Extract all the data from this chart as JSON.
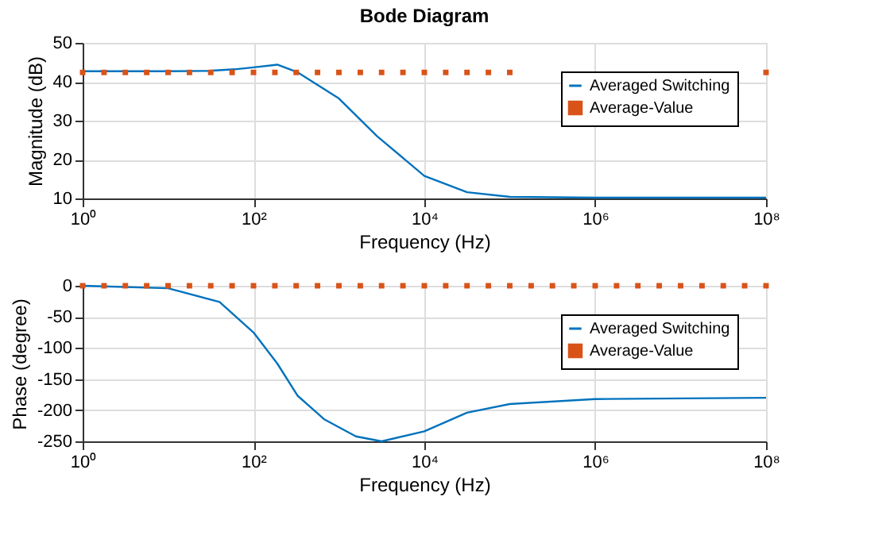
{
  "chart_data": [
    {
      "type": "line",
      "title": "Bode Diagram",
      "xlabel": "Frequency (Hz)",
      "ylabel": "Magnitude (dB)",
      "log": "x",
      "grid": true,
      "legend": "top right",
      "xlim": [
        1,
        100000000
      ],
      "xticks": [
        {
          "value": 1,
          "label": "10⁰"
        },
        {
          "value": 100,
          "label": "10²"
        },
        {
          "value": 10000,
          "label": "10⁴"
        },
        {
          "value": 1000000,
          "label": "10⁶"
        },
        {
          "value": 100000000,
          "label": "10⁸"
        }
      ],
      "ylim": [
        10,
        50
      ],
      "yticks": [
        10,
        20,
        30,
        40,
        50
      ],
      "series": [
        {
          "name": "Averaged Switching",
          "color": "#0072bd",
          "x": [
            1,
            10,
            30,
            60,
            100,
            190,
            330,
            1000,
            2800,
            10000,
            31600,
            100000,
            1000000,
            100000000
          ],
          "values": [
            42.7,
            42.7,
            42.8,
            43.2,
            43.7,
            44.4,
            42.4,
            35.7,
            26,
            15.8,
            11.6,
            10.4,
            10.2,
            10.2
          ]
        },
        {
          "name": "Average-Value",
          "type": "scatter",
          "marker": "square",
          "color": "#d95319",
          "x": [
            1,
            1.78,
            3.16,
            5.62,
            10,
            17.8,
            31.6,
            56.2,
            100,
            178,
            316,
            562,
            1000,
            1780,
            3160,
            5620,
            10000,
            17800,
            31600,
            56200,
            100000,
            178000,
            316000,
            562000,
            1000000,
            1780000,
            3160000,
            5620000,
            10000000,
            17800000,
            31600000,
            56200000,
            100000000
          ],
          "values": [
            42.4,
            42.4,
            42.4,
            42.4,
            42.4,
            42.4,
            42.4,
            42.4,
            42.4,
            42.4,
            42.4,
            42.4,
            42.4,
            42.4,
            42.4,
            42.4,
            42.4,
            42.4,
            42.4,
            42.4,
            42.4,
            null,
            null,
            null,
            null,
            null,
            null,
            null,
            null,
            null,
            null,
            null,
            42.4
          ]
        }
      ]
    },
    {
      "type": "line",
      "xlabel": "Frequency (Hz)",
      "ylabel": "Phase (degree)",
      "log": "x",
      "grid": true,
      "legend": "top right",
      "xlim": [
        1,
        100000000
      ],
      "xticks": [
        {
          "value": 1,
          "label": "10⁰"
        },
        {
          "value": 100,
          "label": "10²"
        },
        {
          "value": 10000,
          "label": "10⁴"
        },
        {
          "value": 1000000,
          "label": "10⁶"
        },
        {
          "value": 100000000,
          "label": "10⁸"
        }
      ],
      "ylim": [
        -250,
        0
      ],
      "yticks": [
        -250,
        -200,
        -150,
        -100,
        -50,
        0
      ],
      "series": [
        {
          "name": "Averaged Switching",
          "color": "#0072bd",
          "x": [
            1,
            10,
            40,
            100,
            190,
            330,
            680,
            1580,
            3160,
            10000,
            31600,
            100000,
            1000000,
            100000000
          ],
          "values": [
            0,
            -4,
            -26,
            -75,
            -125,
            -177,
            -215,
            -242,
            -250,
            -234,
            -204,
            -190,
            -182,
            -180
          ]
        },
        {
          "name": "Average-Value",
          "type": "scatter",
          "marker": "square",
          "color": "#d95319",
          "x": [
            1,
            1.78,
            3.16,
            5.62,
            10,
            17.8,
            31.6,
            56.2,
            100,
            178,
            316,
            562,
            1000,
            1780,
            3160,
            5620,
            10000,
            17800,
            31600,
            56200,
            100000,
            178000,
            316000,
            562000,
            1000000,
            1780000,
            3160000,
            5620000,
            10000000,
            17800000,
            31600000,
            56200000,
            100000000
          ],
          "values": [
            0,
            0,
            0,
            0,
            0,
            0,
            0,
            0,
            0,
            0,
            0,
            0,
            0,
            0,
            0,
            0,
            0,
            0,
            0,
            0,
            0,
            0,
            0,
            0,
            0,
            0,
            0,
            0,
            0,
            0,
            0,
            0,
            0
          ]
        }
      ]
    }
  ]
}
